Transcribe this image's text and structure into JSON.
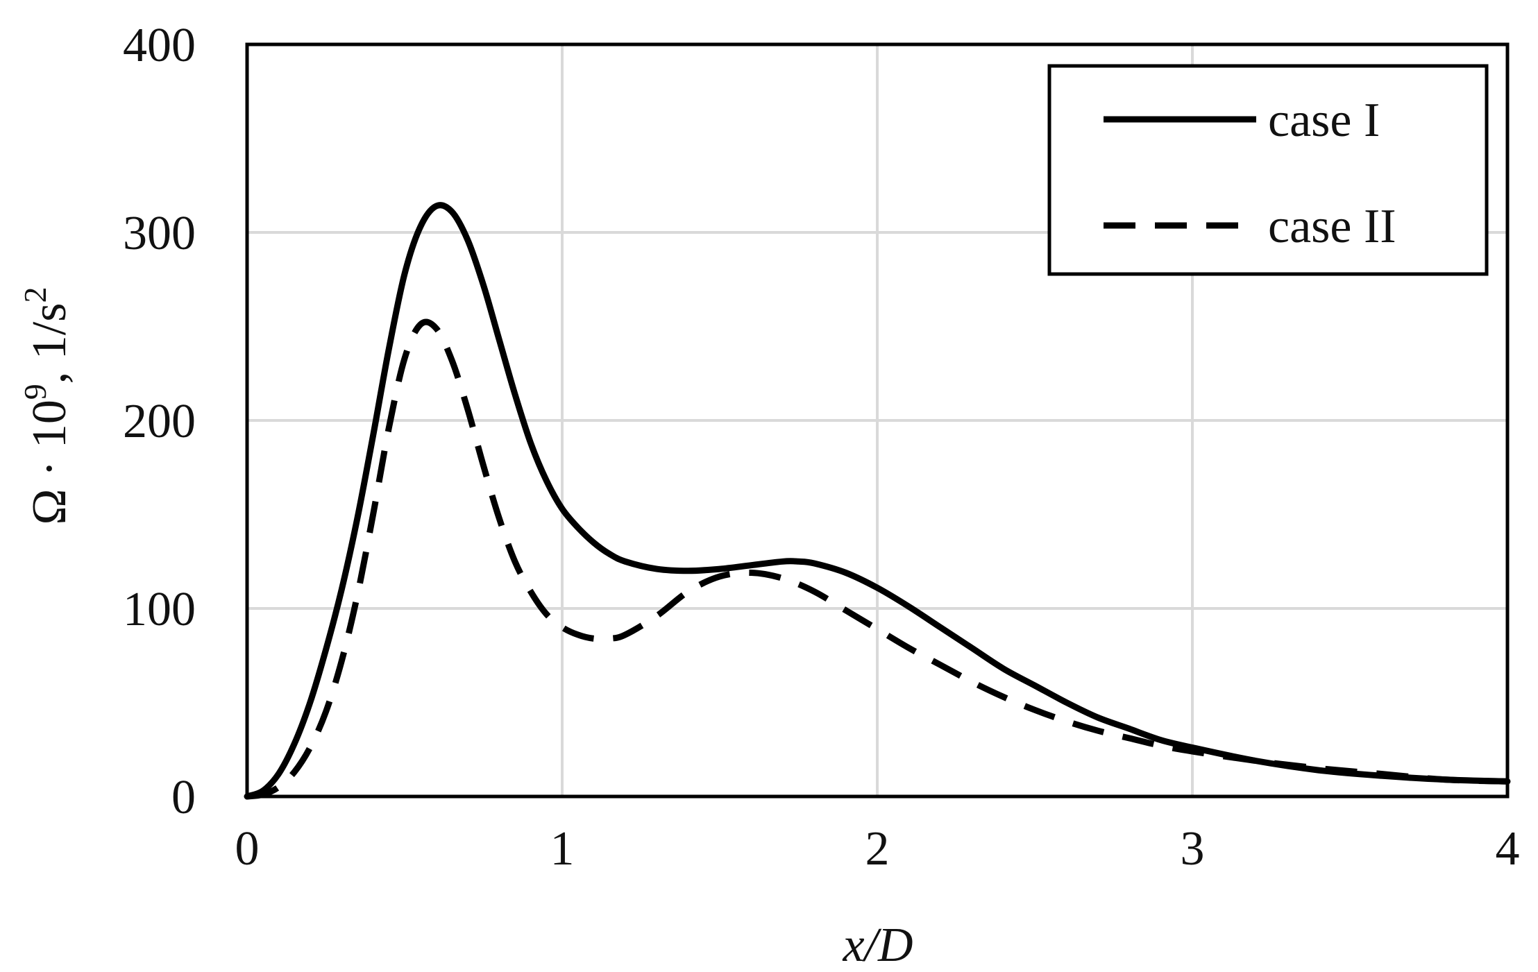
{
  "chart_data": {
    "type": "line",
    "xlabel": "x/D",
    "ylabel": {
      "base": "Ω · 10",
      "exp1": "9",
      "mid": ", 1/s",
      "exp2": "2"
    },
    "xlim": [
      0,
      4
    ],
    "ylim": [
      0,
      400
    ],
    "xticks": [
      "0",
      "1",
      "2",
      "3",
      "4"
    ],
    "yticks": [
      "0",
      "100",
      "200",
      "300",
      "400"
    ],
    "grid": true,
    "legend": "top-right",
    "line_color": "#000000",
    "grid_color": "#d9d9d9",
    "series": [
      {
        "name": "case I",
        "style": "solid",
        "x": [
          0,
          0.05,
          0.1,
          0.15,
          0.2,
          0.25,
          0.3,
          0.35,
          0.4,
          0.45,
          0.5,
          0.55,
          0.6,
          0.65,
          0.7,
          0.75,
          0.8,
          0.85,
          0.9,
          0.95,
          1.0,
          1.05,
          1.1,
          1.15,
          1.2,
          1.3,
          1.4,
          1.5,
          1.6,
          1.7,
          1.75,
          1.8,
          1.9,
          2.0,
          2.1,
          2.2,
          2.3,
          2.4,
          2.5,
          2.6,
          2.7,
          2.8,
          2.9,
          3.0,
          3.2,
          3.4,
          3.6,
          3.8,
          4.0
        ],
        "y": [
          0,
          3,
          12,
          28,
          50,
          78,
          110,
          148,
          192,
          238,
          278,
          303,
          314,
          311,
          296,
          272,
          243,
          214,
          188,
          168,
          153,
          143,
          135,
          129,
          125,
          121,
          120,
          121,
          123,
          125,
          125,
          124,
          119,
          111,
          101,
          90,
          79,
          68,
          59,
          50,
          42,
          36,
          30,
          26,
          19,
          14,
          11,
          9,
          8
        ]
      },
      {
        "name": "case II",
        "style": "dashed",
        "x": [
          0,
          0.05,
          0.1,
          0.15,
          0.2,
          0.25,
          0.3,
          0.35,
          0.4,
          0.45,
          0.5,
          0.55,
          0.6,
          0.65,
          0.7,
          0.75,
          0.8,
          0.85,
          0.9,
          0.95,
          1.0,
          1.05,
          1.1,
          1.15,
          1.2,
          1.3,
          1.4,
          1.5,
          1.6,
          1.7,
          1.8,
          1.9,
          2.0,
          2.1,
          2.2,
          2.3,
          2.4,
          2.5,
          2.6,
          2.7,
          2.8,
          2.9,
          3.0,
          3.2,
          3.4,
          3.6,
          3.8,
          4.0
        ],
        "y": [
          0,
          1,
          5,
          13,
          26,
          45,
          72,
          107,
          150,
          196,
          233,
          251,
          249,
          232,
          206,
          176,
          148,
          125,
          109,
          97,
          90,
          86,
          84,
          84,
          86,
          96,
          109,
          117,
          119,
          116,
          109,
          99,
          89,
          79,
          70,
          61,
          53,
          46,
          40,
          35,
          31,
          27,
          24,
          19,
          15,
          12,
          9,
          8
        ]
      }
    ]
  }
}
